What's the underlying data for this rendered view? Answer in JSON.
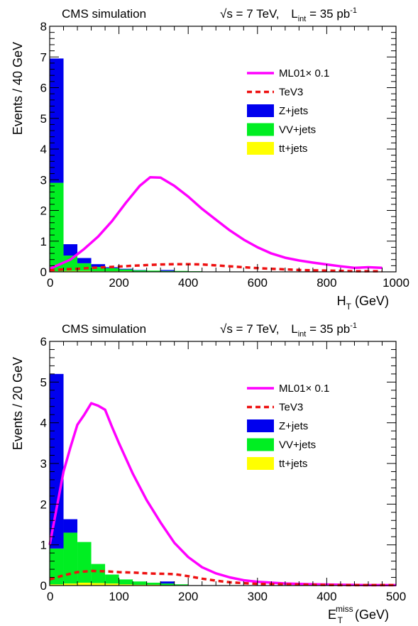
{
  "chart_data": [
    {
      "type": "histogram+line",
      "header_left": "CMS simulation",
      "header_right_sqrt": "√s = 7 TeV,",
      "header_right_lumi_main": "L",
      "header_right_lumi_sub": "int",
      "header_right_lumi_value": " = 35 pb",
      "header_right_lumi_sup": "-1",
      "ylabel": "Events / 40 GeV",
      "xlabel_main": "H",
      "xlabel_sub": "T",
      "xlabel_super": "",
      "xlabel_tail": " (GeV)",
      "xlim": [
        0,
        1000
      ],
      "ylim": [
        0,
        8
      ],
      "xticks": [
        0,
        200,
        400,
        600,
        800,
        1000
      ],
      "yticks": [
        0,
        1,
        2,
        3,
        4,
        5,
        6,
        7,
        8
      ],
      "bin_edges": [
        0,
        40,
        80,
        120,
        160,
        200,
        240,
        280,
        320,
        360,
        400,
        440,
        480
      ],
      "stack": [
        {
          "name": "tt+jets",
          "color": "#ffff00",
          "values": [
            0.02,
            0.03,
            0.03,
            0.02,
            0.02,
            0.02,
            0.01,
            0.01,
            0.01,
            0.01,
            0.0,
            0.0
          ]
        },
        {
          "name": "VV+jets",
          "color": "#00ee22",
          "values": [
            2.88,
            0.5,
            0.25,
            0.14,
            0.1,
            0.06,
            0.04,
            0.03,
            0.02,
            0.02,
            0.02,
            0.01
          ]
        },
        {
          "name": "Z+jets",
          "color": "#0000ee",
          "values": [
            4.05,
            0.37,
            0.17,
            0.09,
            0.03,
            0.02,
            0.01,
            0.0,
            0.03,
            0.0,
            0.0,
            0.0
          ]
        }
      ],
      "lines": [
        {
          "name": "ML01× 0.1",
          "color": "#ff00ff",
          "dash": "",
          "x": [
            0,
            20,
            60,
            100,
            140,
            180,
            220,
            260,
            290,
            320,
            360,
            400,
            440,
            480,
            520,
            560,
            600,
            640,
            680,
            720,
            760,
            800,
            840,
            880,
            920,
            960
          ],
          "y": [
            0.1,
            0.2,
            0.4,
            0.75,
            1.15,
            1.65,
            2.25,
            2.8,
            3.08,
            3.07,
            2.8,
            2.45,
            2.05,
            1.7,
            1.35,
            1.05,
            0.8,
            0.6,
            0.46,
            0.37,
            0.3,
            0.24,
            0.18,
            0.13,
            0.15,
            0.13
          ]
        },
        {
          "name": "TeV3",
          "color": "#ee1111",
          "dash": "7,5",
          "x": [
            0,
            40,
            80,
            120,
            160,
            200,
            240,
            280,
            320,
            360,
            400,
            440,
            480,
            520,
            560,
            600,
            640,
            680,
            720,
            760,
            800,
            840,
            880,
            920,
            960
          ],
          "y": [
            0.05,
            0.08,
            0.1,
            0.13,
            0.15,
            0.17,
            0.2,
            0.22,
            0.24,
            0.25,
            0.25,
            0.24,
            0.21,
            0.18,
            0.15,
            0.12,
            0.1,
            0.08,
            0.06,
            0.05,
            0.04,
            0.03,
            0.02,
            0.02,
            0.02
          ]
        }
      ],
      "legend": [
        "ML01× 0.1",
        "TeV3",
        "Z+jets",
        "VV+jets",
        "tt+jets"
      ]
    },
    {
      "type": "histogram+line",
      "header_left": "CMS simulation",
      "header_right_sqrt": "√s = 7 TeV,",
      "header_right_lumi_main": "L",
      "header_right_lumi_sub": "int",
      "header_right_lumi_value": " = 35 pb",
      "header_right_lumi_sup": "-1",
      "ylabel": "Events / 20 GeV",
      "xlabel_main": "E",
      "xlabel_sub": "T",
      "xlabel_super": "miss",
      "xlabel_tail": " (GeV)",
      "xlim": [
        0,
        500
      ],
      "ylim": [
        0,
        6
      ],
      "xticks": [
        0,
        100,
        200,
        300,
        400,
        500
      ],
      "yticks": [
        0,
        1,
        2,
        3,
        4,
        5,
        6
      ],
      "bin_edges": [
        0,
        20,
        40,
        60,
        80,
        100,
        120,
        140,
        160,
        180,
        200
      ],
      "stack": [
        {
          "name": "tt+jets",
          "color": "#ffff00",
          "values": [
            0.03,
            0.05,
            0.07,
            0.06,
            0.05,
            0.03,
            0.02,
            0.02,
            0.01,
            0.01
          ]
        },
        {
          "name": "VV+jets",
          "color": "#00ee22",
          "values": [
            0.88,
            1.25,
            1.0,
            0.47,
            0.22,
            0.12,
            0.08,
            0.05,
            0.04,
            0.02
          ]
        },
        {
          "name": "Z+jets",
          "color": "#0000ee",
          "values": [
            4.29,
            0.33,
            0.0,
            0.0,
            0.0,
            0.0,
            0.0,
            0.0,
            0.05,
            0.0
          ]
        }
      ],
      "lines": [
        {
          "name": "ML01× 0.1",
          "color": "#ff00ff",
          "dash": "",
          "x": [
            0,
            10,
            20,
            30,
            40,
            50,
            60,
            70,
            80,
            90,
            100,
            120,
            140,
            160,
            180,
            200,
            220,
            240,
            260,
            280,
            300,
            340,
            380,
            420,
            460,
            500
          ],
          "y": [
            1.0,
            1.9,
            2.8,
            3.4,
            3.95,
            4.2,
            4.48,
            4.42,
            4.32,
            3.9,
            3.5,
            2.75,
            2.1,
            1.55,
            1.05,
            0.7,
            0.45,
            0.3,
            0.2,
            0.13,
            0.09,
            0.05,
            0.03,
            0.02,
            0.01,
            0.01
          ]
        },
        {
          "name": "TeV3",
          "color": "#ee1111",
          "dash": "7,5",
          "x": [
            0,
            20,
            40,
            60,
            80,
            100,
            120,
            140,
            160,
            180,
            200,
            220,
            240,
            260,
            280,
            300,
            340,
            380,
            420,
            460,
            500
          ],
          "y": [
            0.15,
            0.25,
            0.33,
            0.36,
            0.35,
            0.33,
            0.32,
            0.3,
            0.29,
            0.28,
            0.23,
            0.17,
            0.12,
            0.08,
            0.06,
            0.04,
            0.03,
            0.02,
            0.01,
            0.01,
            0.01
          ]
        }
      ],
      "legend": [
        "ML01× 0.1",
        "TeV3",
        "Z+jets",
        "VV+jets",
        "tt+jets"
      ]
    }
  ]
}
